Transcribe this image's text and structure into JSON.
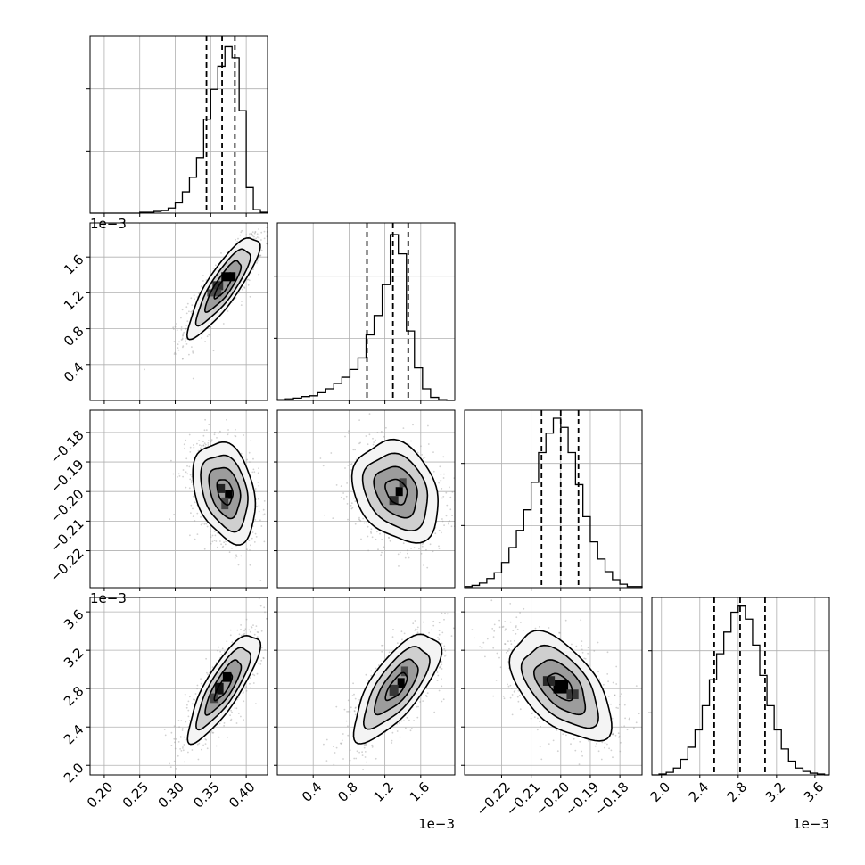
{
  "chart_data": {
    "type": "corner",
    "parameters": [
      {
        "name": "",
        "range": [
          0.18,
          0.43
        ],
        "ticks": [
          0.2,
          0.25,
          0.3,
          0.35,
          0.4
        ],
        "tick_labels": [
          "0.20",
          "0.25",
          "0.30",
          "0.35",
          "0.40"
        ],
        "offset_text": "",
        "quantiles": [
          0.344,
          0.366,
          0.384
        ],
        "hist_edges": [
          0.18,
          0.19,
          0.2,
          0.21,
          0.22,
          0.23,
          0.24,
          0.25,
          0.26,
          0.27,
          0.28,
          0.29,
          0.3,
          0.31,
          0.32,
          0.33,
          0.34,
          0.35,
          0.36,
          0.37,
          0.38,
          0.39,
          0.4,
          0.41,
          0.42,
          0.43
        ],
        "hist_counts": [
          0,
          0,
          0,
          0,
          0,
          0,
          0,
          1,
          1,
          2,
          3,
          6,
          12,
          25,
          42,
          65,
          110,
          145,
          172,
          195,
          182,
          120,
          30,
          4,
          1
        ],
        "ymax": 208
      },
      {
        "name": "",
        "range": [
          0.0,
          1.98
        ],
        "ticks": [
          0.4,
          0.8,
          1.2,
          1.6
        ],
        "tick_labels": [
          "0.4",
          "0.8",
          "1.2",
          "1.6"
        ],
        "offset_text": "1e−3",
        "quantiles": [
          1.0,
          1.29,
          1.46
        ],
        "hist_edges": [
          0.0,
          0.09,
          0.18,
          0.27,
          0.36,
          0.45,
          0.54,
          0.63,
          0.72,
          0.81,
          0.9,
          0.99,
          1.08,
          1.17,
          1.26,
          1.35,
          1.44,
          1.53,
          1.62,
          1.71,
          1.8,
          1.89,
          1.98
        ],
        "hist_counts": [
          1,
          2,
          3,
          5,
          6,
          10,
          15,
          22,
          30,
          40,
          55,
          85,
          110,
          150,
          215,
          190,
          90,
          42,
          15,
          4,
          1,
          0
        ],
        "ymax": 230
      },
      {
        "name": "",
        "range": [
          -0.2325,
          -0.1725
        ],
        "ticks": [
          -0.22,
          -0.21,
          -0.2,
          -0.19,
          -0.18
        ],
        "tick_labels": [
          "−0.22",
          "−0.21",
          "−0.20",
          "−0.19",
          "−0.18"
        ],
        "offset_text": "",
        "quantiles": [
          -0.2065,
          -0.2,
          -0.194
        ],
        "hist_edges": [
          -0.2325,
          -0.23,
          -0.2275,
          -0.225,
          -0.2225,
          -0.22,
          -0.2175,
          -0.215,
          -0.2125,
          -0.21,
          -0.2075,
          -0.205,
          -0.2025,
          -0.2,
          -0.1975,
          -0.195,
          -0.1925,
          -0.19,
          -0.1875,
          -0.185,
          -0.1825,
          -0.18,
          -0.1775,
          -0.175,
          -0.1725
        ],
        "hist_counts": [
          1,
          2,
          4,
          8,
          13,
          22,
          35,
          50,
          68,
          92,
          118,
          135,
          148,
          140,
          118,
          90,
          62,
          40,
          25,
          14,
          7,
          3,
          1,
          1
        ],
        "ymax": 155
      },
      {
        "name": "",
        "range": [
          1.9,
          3.75
        ],
        "ticks": [
          2.0,
          2.4,
          2.8,
          3.2,
          3.6
        ],
        "tick_labels": [
          "2.0",
          "2.4",
          "2.8",
          "3.2",
          "3.6"
        ],
        "offset_text": "1e−3",
        "quantiles": [
          2.55,
          2.82,
          3.08
        ],
        "hist_edges": [
          1.9,
          1.975,
          2.05,
          2.125,
          2.2,
          2.275,
          2.35,
          2.425,
          2.5,
          2.575,
          2.65,
          2.725,
          2.8,
          2.875,
          2.95,
          3.025,
          3.1,
          3.175,
          3.25,
          3.325,
          3.4,
          3.475,
          3.55,
          3.625,
          3.7,
          3.75
        ],
        "hist_counts": [
          0,
          1,
          3,
          8,
          18,
          32,
          52,
          80,
          110,
          140,
          165,
          188,
          195,
          180,
          150,
          115,
          80,
          52,
          30,
          16,
          8,
          4,
          2,
          1,
          0
        ],
        "ymax": 205
      }
    ],
    "pairs": [
      {
        "x": 0,
        "y": 1,
        "center": [
          0.368,
          1.28
        ],
        "sd": [
          0.025,
          0.28
        ],
        "rho": 0.85,
        "offset_text": "1e−3",
        "cells": [
          {
            "x": 0.375,
            "y": 1.38,
            "w": 0.02,
            "h": 0.1,
            "d": 1.0
          },
          {
            "x": 0.36,
            "y": 1.28,
            "w": 0.015,
            "h": 0.1,
            "d": 0.55
          },
          {
            "x": 0.355,
            "y": 1.2,
            "w": 0.02,
            "h": 0.08,
            "d": 0.3
          }
        ]
      },
      {
        "x": 0,
        "y": 2,
        "center": [
          0.37,
          -0.2
        ],
        "sd": [
          0.022,
          0.0085
        ],
        "rho": -0.3,
        "offset_text": "",
        "cells": [
          {
            "x": 0.375,
            "y": -0.201,
            "w": 0.01,
            "h": 0.003,
            "d": 1.0
          },
          {
            "x": 0.365,
            "y": -0.199,
            "w": 0.01,
            "h": 0.003,
            "d": 0.7
          },
          {
            "x": 0.37,
            "y": -0.204,
            "w": 0.01,
            "h": 0.004,
            "d": 0.35
          }
        ]
      },
      {
        "x": 1,
        "y": 2,
        "center": [
          1.33,
          -0.2
        ],
        "sd": [
          0.24,
          0.0085
        ],
        "rho": -0.25,
        "offset_text": "",
        "cells": [
          {
            "x": 1.36,
            "y": -0.2,
            "w": 0.08,
            "h": 0.003,
            "d": 1.0
          },
          {
            "x": 1.3,
            "y": -0.203,
            "w": 0.1,
            "h": 0.003,
            "d": 0.6
          },
          {
            "x": 1.4,
            "y": -0.197,
            "w": 0.08,
            "h": 0.003,
            "d": 0.35
          }
        ]
      },
      {
        "x": 0,
        "y": 3,
        "center": [
          0.368,
          2.82
        ],
        "sd": [
          0.025,
          0.28
        ],
        "rho": 0.82,
        "offset_text": "1e−3",
        "cells": [
          {
            "x": 0.373,
            "y": 2.92,
            "w": 0.012,
            "h": 0.1,
            "d": 1.0
          },
          {
            "x": 0.362,
            "y": 2.8,
            "w": 0.012,
            "h": 0.12,
            "d": 0.85
          },
          {
            "x": 0.355,
            "y": 2.7,
            "w": 0.012,
            "h": 0.1,
            "d": 0.35
          }
        ]
      },
      {
        "x": 1,
        "y": 3,
        "center": [
          1.33,
          2.82
        ],
        "sd": [
          0.24,
          0.28
        ],
        "rho": 0.72,
        "offset_text": "",
        "cells": [
          {
            "x": 1.38,
            "y": 2.86,
            "w": 0.08,
            "h": 0.1,
            "d": 1.0
          },
          {
            "x": 1.3,
            "y": 2.78,
            "w": 0.1,
            "h": 0.12,
            "d": 0.5
          },
          {
            "x": 1.42,
            "y": 2.98,
            "w": 0.08,
            "h": 0.1,
            "d": 0.35
          }
        ]
      },
      {
        "x": 2,
        "y": 3,
        "center": [
          -0.2,
          2.82
        ],
        "sd": [
          0.0085,
          0.28
        ],
        "rho": -0.55,
        "offset_text": "",
        "cells": [
          {
            "x": -0.2,
            "y": 2.82,
            "w": 0.005,
            "h": 0.14,
            "d": 1.0
          },
          {
            "x": -0.204,
            "y": 2.88,
            "w": 0.004,
            "h": 0.1,
            "d": 0.65
          },
          {
            "x": -0.196,
            "y": 2.74,
            "w": 0.004,
            "h": 0.1,
            "d": 0.5
          }
        ]
      }
    ],
    "contour_levels": [
      0.5,
      1.0,
      1.5,
      2.0
    ],
    "grid": true,
    "legend": "none"
  }
}
